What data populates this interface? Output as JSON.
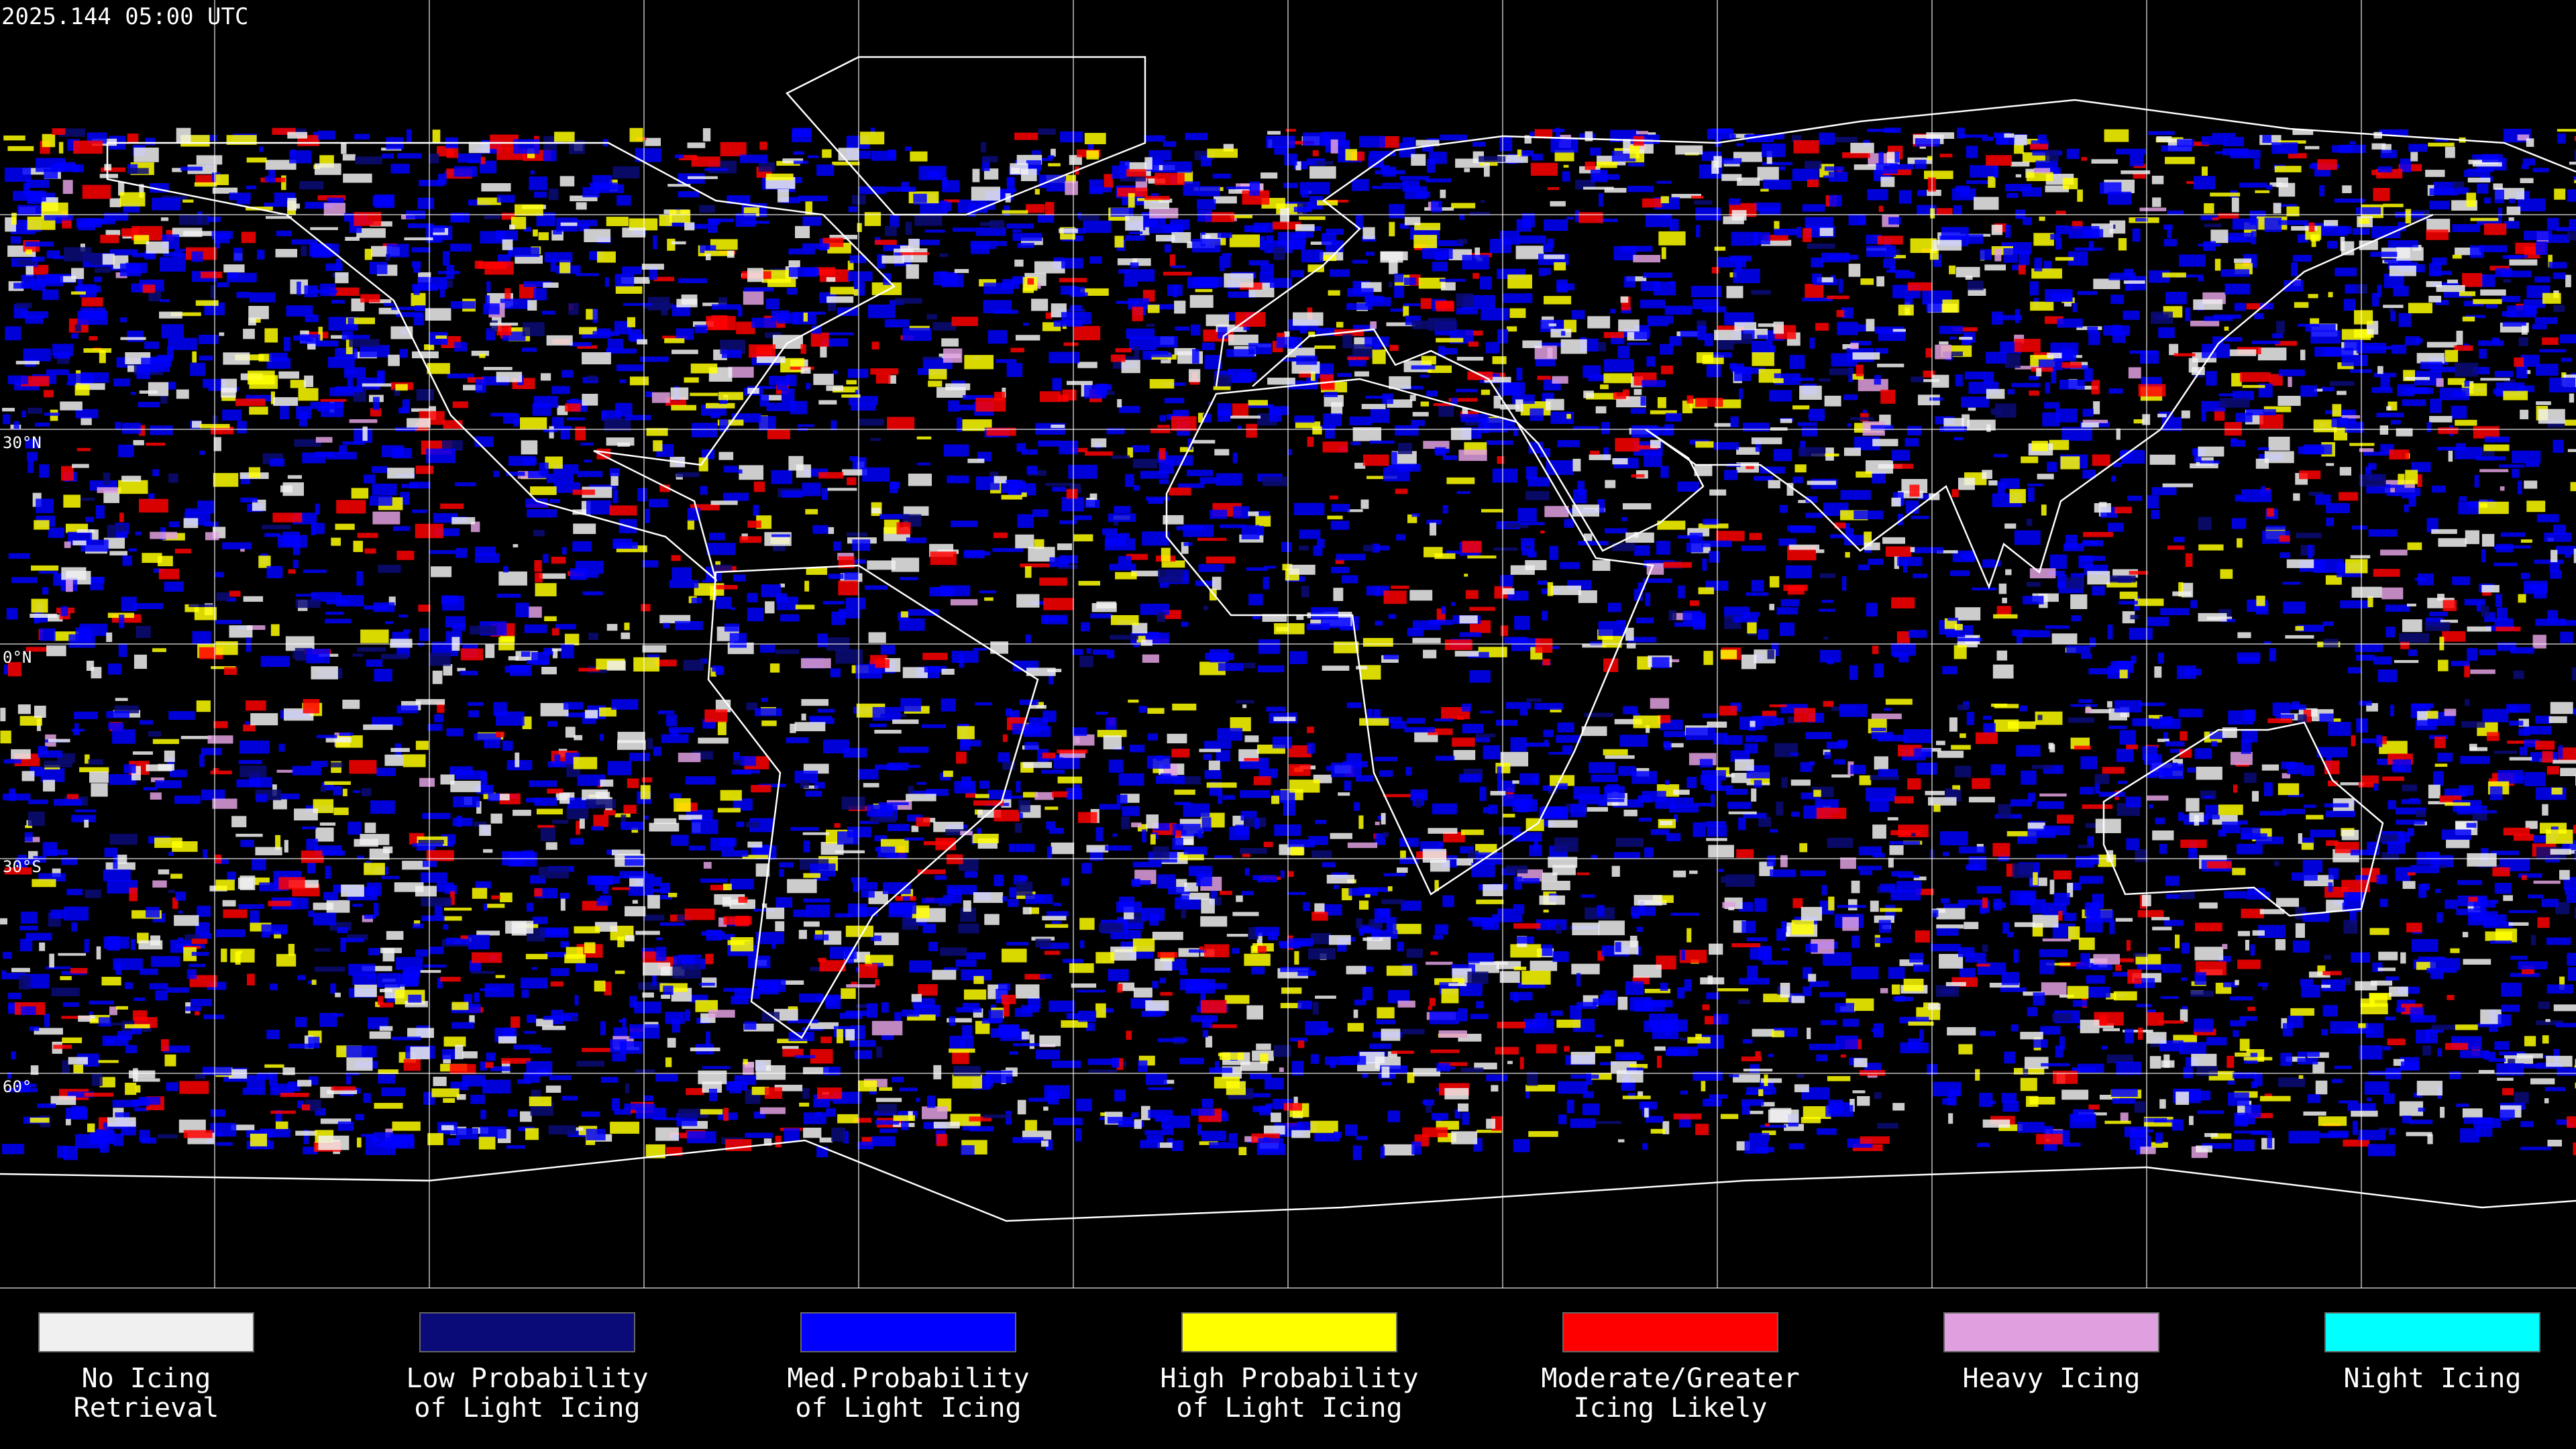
{
  "header": {
    "title": "2025.144 05:00 UTC"
  },
  "map": {
    "lat_labels": [
      "30°N",
      "0°N",
      "30°S",
      "60°"
    ]
  },
  "legend": [
    {
      "lines": [
        "No Icing",
        "Retrieval"
      ],
      "color": "#f0f0f0"
    },
    {
      "lines": [
        "Low Probability",
        "of Light Icing"
      ],
      "color": "#0a0a78"
    },
    {
      "lines": [
        "Med.Probability",
        "of Light Icing"
      ],
      "color": "#0000ff"
    },
    {
      "lines": [
        "High Probability",
        "of Light Icing"
      ],
      "color": "#ffff00"
    },
    {
      "lines": [
        "Moderate/Greater",
        "Icing Likely"
      ],
      "color": "#ff0000"
    },
    {
      "lines": [
        "Heavy Icing"
      ],
      "color": "#e0a0e0"
    },
    {
      "lines": [
        "Night Icing"
      ],
      "color": "#00ffff"
    }
  ]
}
